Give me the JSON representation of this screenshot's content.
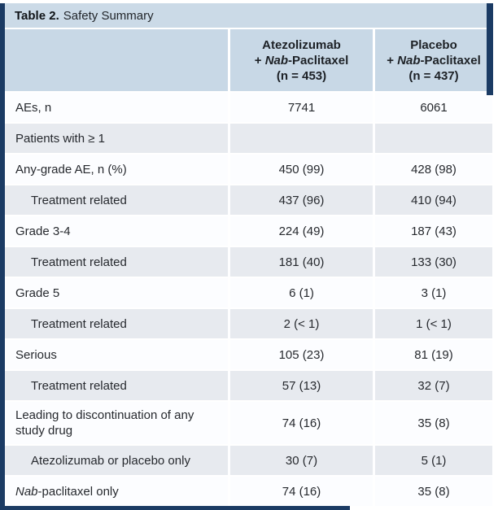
{
  "colors": {
    "navy": "#1b3b64",
    "title-bg": "#cbdae7",
    "header-bg": "#c8d8e6",
    "row-shaded": "#e7eaef",
    "row-plain": "#fcfdff",
    "separator": "#ffffff",
    "text": "#26292e"
  },
  "table": {
    "title_prefix": "Table 2.",
    "title_suffix": "Safety Summary",
    "columns": [
      {
        "line1": "Atezolizumab",
        "line2_pre": "+ ",
        "line2_italic": "Nab",
        "line2_post": "-Paclitaxel",
        "line3": "(n = 453)"
      },
      {
        "line1": "Placebo",
        "line2_pre": "+ ",
        "line2_italic": "Nab",
        "line2_post": "-Paclitaxel",
        "line3": "(n = 437)"
      }
    ],
    "rows": [
      {
        "label_italic": "",
        "label": "AEs, n",
        "indent": false,
        "section": false,
        "values": [
          "7741",
          "6061"
        ]
      },
      {
        "label_italic": "",
        "label": "Patients with ≥ 1",
        "indent": false,
        "section": true,
        "values": [
          "",
          ""
        ]
      },
      {
        "label_italic": "",
        "label": "Any-grade AE, n (%)",
        "indent": false,
        "section": false,
        "values": [
          "450 (99)",
          "428 (98)"
        ]
      },
      {
        "label_italic": "",
        "label": "Treatment related",
        "indent": true,
        "section": false,
        "values": [
          "437 (96)",
          "410 (94)"
        ]
      },
      {
        "label_italic": "",
        "label": "Grade 3-4",
        "indent": false,
        "section": false,
        "values": [
          "224 (49)",
          "187 (43)"
        ]
      },
      {
        "label_italic": "",
        "label": "Treatment related",
        "indent": true,
        "section": false,
        "values": [
          "181 (40)",
          "133 (30)"
        ]
      },
      {
        "label_italic": "",
        "label": "Grade 5",
        "indent": false,
        "section": false,
        "values": [
          "6 (1)",
          "3 (1)"
        ]
      },
      {
        "label_italic": "",
        "label": "Treatment related",
        "indent": true,
        "section": false,
        "values": [
          "2 (< 1)",
          "1 (< 1)"
        ]
      },
      {
        "label_italic": "",
        "label": "Serious",
        "indent": false,
        "section": false,
        "values": [
          "105 (23)",
          "81 (19)"
        ]
      },
      {
        "label_italic": "",
        "label": "Treatment related",
        "indent": true,
        "section": false,
        "values": [
          "57 (13)",
          "32 (7)"
        ]
      },
      {
        "label_italic": "",
        "label": "Leading to discontinuation of any study drug",
        "indent": false,
        "section": false,
        "values": [
          "74 (16)",
          "35 (8)"
        ]
      },
      {
        "label_italic": "",
        "label": "Atezolizumab or placebo only",
        "indent": true,
        "section": false,
        "values": [
          "30 (7)",
          "5 (1)"
        ]
      },
      {
        "label_italic": "Nab",
        "label": "-paclitaxel only",
        "indent": false,
        "section": false,
        "values": [
          "74 (16)",
          "35 (8)"
        ]
      }
    ]
  }
}
